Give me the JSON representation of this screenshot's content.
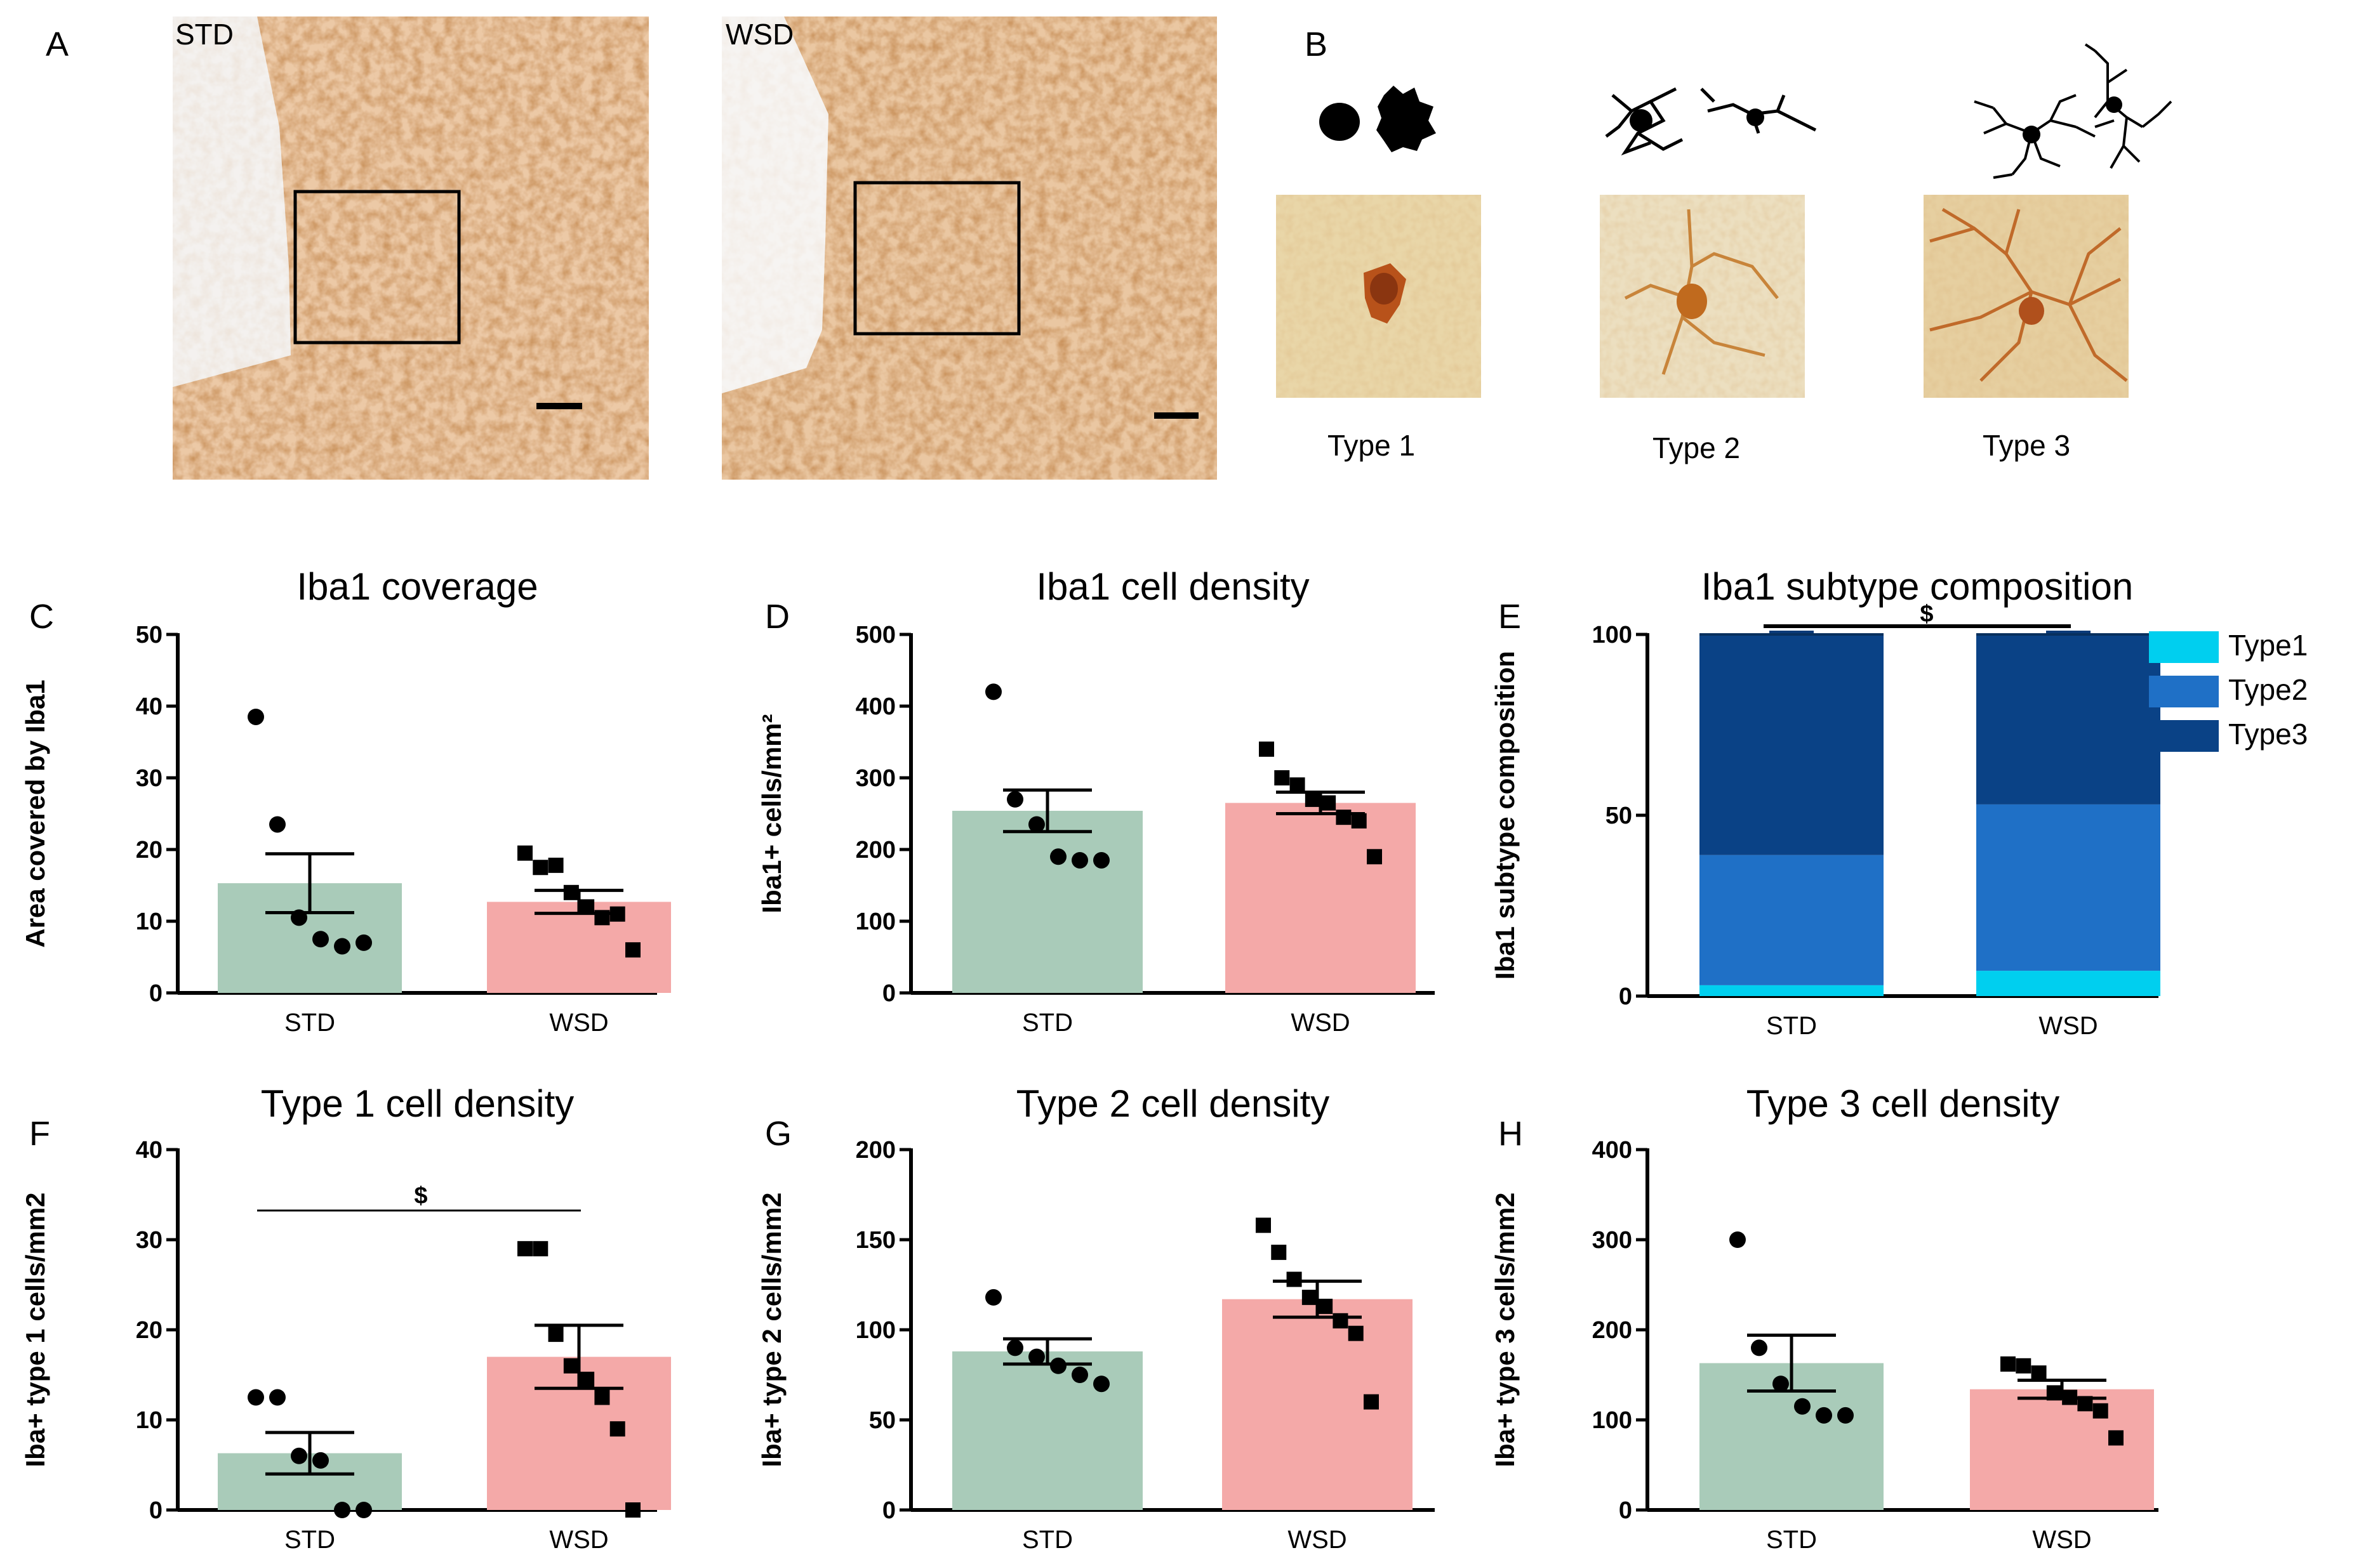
{
  "panels": {
    "A": {
      "letter": "A",
      "left_label": "STD",
      "right_label": "WSD"
    },
    "B": {
      "letter": "B",
      "types": [
        "Type 1",
        "Type 2",
        "Type 3"
      ]
    },
    "C": {
      "letter": "C"
    },
    "D": {
      "letter": "D"
    },
    "E": {
      "letter": "E"
    },
    "F": {
      "letter": "F"
    },
    "G": {
      "letter": "G"
    },
    "H": {
      "letter": "H"
    }
  },
  "colors": {
    "std": "#a9cbb9",
    "wsd": "#f4a9a8",
    "type1": "#00cfef",
    "type2": "#1f70c6",
    "type3": "#0a4286"
  },
  "chart_data": [
    {
      "id": "C",
      "type": "bar",
      "title": "Iba1 coverage",
      "xlabel": "",
      "ylabel": "Area covered by Iba1",
      "categories": [
        "STD",
        "WSD"
      ],
      "ylim": [
        0,
        50
      ],
      "yticks": [
        0,
        10,
        20,
        30,
        40,
        50
      ],
      "values": [
        15.3,
        12.7
      ],
      "errors": [
        4.1,
        1.6
      ],
      "points": [
        [
          38.5,
          23.5,
          10.5,
          7.5,
          6.5,
          7.0
        ],
        [
          19.5,
          17.5,
          17.8,
          14.0,
          12.0,
          10.5,
          11.0,
          6.0
        ]
      ]
    },
    {
      "id": "D",
      "type": "bar",
      "title": "Iba1 cell density",
      "xlabel": "",
      "ylabel": "Iba1+ cells/mm²",
      "categories": [
        "STD",
        "WSD"
      ],
      "ylim": [
        0,
        500
      ],
      "yticks": [
        0,
        100,
        200,
        300,
        400,
        500
      ],
      "values": [
        254,
        265
      ],
      "errors": [
        29,
        15
      ],
      "points": [
        [
          420,
          270,
          235,
          190,
          185,
          185
        ],
        [
          340,
          300,
          290,
          270,
          265,
          245,
          240,
          190
        ]
      ]
    },
    {
      "id": "E",
      "type": "bar",
      "title": "Iba1 subtype composition",
      "xlabel": "",
      "ylabel": "Iba1 subtype composition",
      "categories": [
        "STD",
        "WSD"
      ],
      "ylim": [
        0,
        100
      ],
      "yticks": [
        0,
        50,
        100
      ],
      "series": [
        {
          "name": "Type1",
          "values": [
            3,
            7
          ]
        },
        {
          "name": "Type2",
          "values": [
            36,
            46
          ]
        },
        {
          "name": "Type3",
          "values": [
            61,
            47
          ]
        }
      ],
      "annotation": "$"
    },
    {
      "id": "F",
      "type": "bar",
      "title": "Type 1 cell density",
      "xlabel": "",
      "ylabel": "Iba+ type 1 cells/mm2",
      "categories": [
        "STD",
        "WSD"
      ],
      "ylim": [
        0,
        40
      ],
      "yticks": [
        0,
        10,
        20,
        30,
        40
      ],
      "values": [
        6.3,
        17.0
      ],
      "errors": [
        2.3,
        3.5
      ],
      "points": [
        [
          12.5,
          12.5,
          6.0,
          5.5,
          0.0,
          0.0
        ],
        [
          29.0,
          29.0,
          19.5,
          16.0,
          14.5,
          12.5,
          9.0,
          0.0
        ]
      ],
      "annotation": "$"
    },
    {
      "id": "G",
      "type": "bar",
      "title": "Type 2 cell density",
      "xlabel": "",
      "ylabel": "Iba+ type 2 cells/mm2",
      "categories": [
        "STD",
        "WSD"
      ],
      "ylim": [
        0,
        200
      ],
      "yticks": [
        0,
        50,
        100,
        150,
        200
      ],
      "values": [
        88,
        117
      ],
      "errors": [
        7,
        10
      ],
      "points": [
        [
          118,
          90,
          85,
          80,
          75,
          70
        ],
        [
          158,
          143,
          128,
          118,
          113,
          105,
          98,
          60
        ]
      ]
    },
    {
      "id": "H",
      "type": "bar",
      "title": "Type 3 cell density",
      "xlabel": "",
      "ylabel": "Iba+ type 3 cells/mm2",
      "categories": [
        "STD",
        "WSD"
      ],
      "ylim": [
        0,
        400
      ],
      "yticks": [
        0,
        100,
        200,
        300,
        400
      ],
      "values": [
        163,
        134
      ],
      "errors": [
        31,
        10
      ],
      "points": [
        [
          300,
          180,
          140,
          115,
          105,
          105
        ],
        [
          162,
          160,
          152,
          130,
          125,
          118,
          110,
          80
        ]
      ]
    }
  ]
}
